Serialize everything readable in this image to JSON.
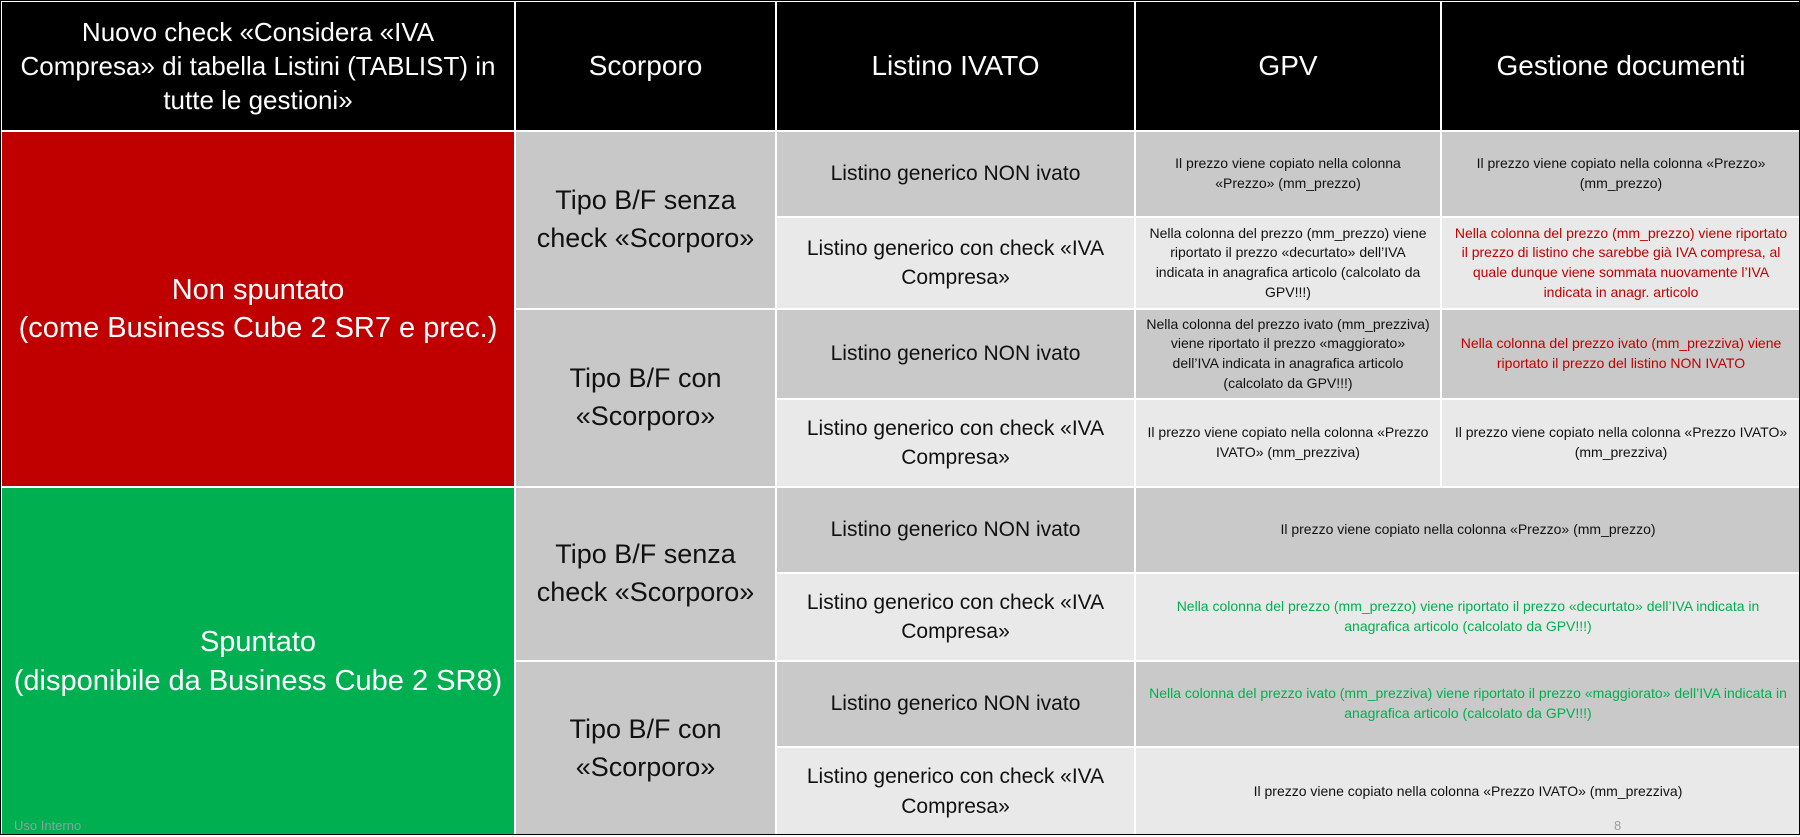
{
  "header": {
    "col1": "Nuovo check «Considera «IVA Compresa» di tabella Listini (TABLIST) in tutte le gestioni»",
    "col2": "Scorporo",
    "col3": "Listino IVATO",
    "col4": "GPV",
    "col5": "Gestione documenti"
  },
  "sections": {
    "non_spuntato": {
      "label_line1": "Non spuntato",
      "label_line2": "(come Business Cube 2 SR7 e prec.)",
      "color": "#c00000"
    },
    "spuntato": {
      "label_line1": "Spuntato",
      "label_line2": "(disponibile da Business Cube 2 SR8)",
      "color": "#00b050"
    }
  },
  "types": {
    "senza_scorporo_1": "Tipo B/F senza check «Scorporo»",
    "con_scorporo_1": "Tipo B/F con «Scorporo»",
    "senza_scorporo_2": "Tipo B/F senza check «Scorporo»",
    "con_scorporo_2": "Tipo B/F con «Scorporo»"
  },
  "rows": [
    {
      "listino": "Listino generico NON ivato",
      "gpv": "Il prezzo viene copiato nella colonna «Prezzo» (mm_prezzo)",
      "gestione": "Il prezzo viene copiato nella colonna «Prezzo» (mm_prezzo)"
    },
    {
      "listino": "Listino generico con check «IVA Compresa»",
      "gpv": "Nella colonna del prezzo (mm_prezzo) viene riportato il prezzo «decurtato» dell’IVA indicata in anagrafica articolo (calcolato da GPV!!!)",
      "gestione": "Nella colonna del prezzo (mm_prezzo) viene riportato il prezzo di listino che sarebbe già IVA compresa, al quale dunque viene sommata nuovamente l’IVA indicata in anagr. articolo"
    },
    {
      "listino": "Listino generico NON ivato",
      "gpv": "Nella colonna del prezzo ivato (mm_prezziva) viene riportato il prezzo «maggiorato» dell’IVA indicata in anagrafica articolo (calcolato da GPV!!!)",
      "gestione": "Nella colonna del prezzo ivato (mm_prezziva) viene riportato il prezzo del listino NON IVATO"
    },
    {
      "listino": "Listino generico con check «IVA Compresa»",
      "gpv": "Il prezzo viene copiato nella colonna «Prezzo IVATO» (mm_prezziva)",
      "gestione": "Il prezzo viene copiato nella colonna «Prezzo IVATO» (mm_prezziva)"
    },
    {
      "listino": "Listino generico NON ivato",
      "merged": "Il prezzo viene copiato nella colonna «Prezzo» (mm_prezzo)"
    },
    {
      "listino": "Listino generico con check «IVA Compresa»",
      "merged": "Nella colonna del prezzo (mm_prezzo) viene riportato il prezzo «decurtato» dell’IVA indicata in anagrafica articolo (calcolato da GPV!!!)"
    },
    {
      "listino": "Listino generico NON ivato",
      "merged": "Nella colonna del prezzo ivato (mm_prezziva) viene riportato il prezzo «maggiorato» dell’IVA indicata in anagrafica articolo (calcolato da GPV!!!)"
    },
    {
      "listino": "Listino generico con check «IVA Compresa»",
      "merged": "Il prezzo viene copiato nella colonna «Prezzo IVATO» (mm_prezziva)"
    }
  ],
  "footer": {
    "classification": "Uso Interno",
    "page_number": "8"
  },
  "colors": {
    "header_bg": "#000000",
    "red": "#c00000",
    "green": "#00b050",
    "cell_dark": "#c9c9c9",
    "cell_light": "#e9e9e9"
  }
}
